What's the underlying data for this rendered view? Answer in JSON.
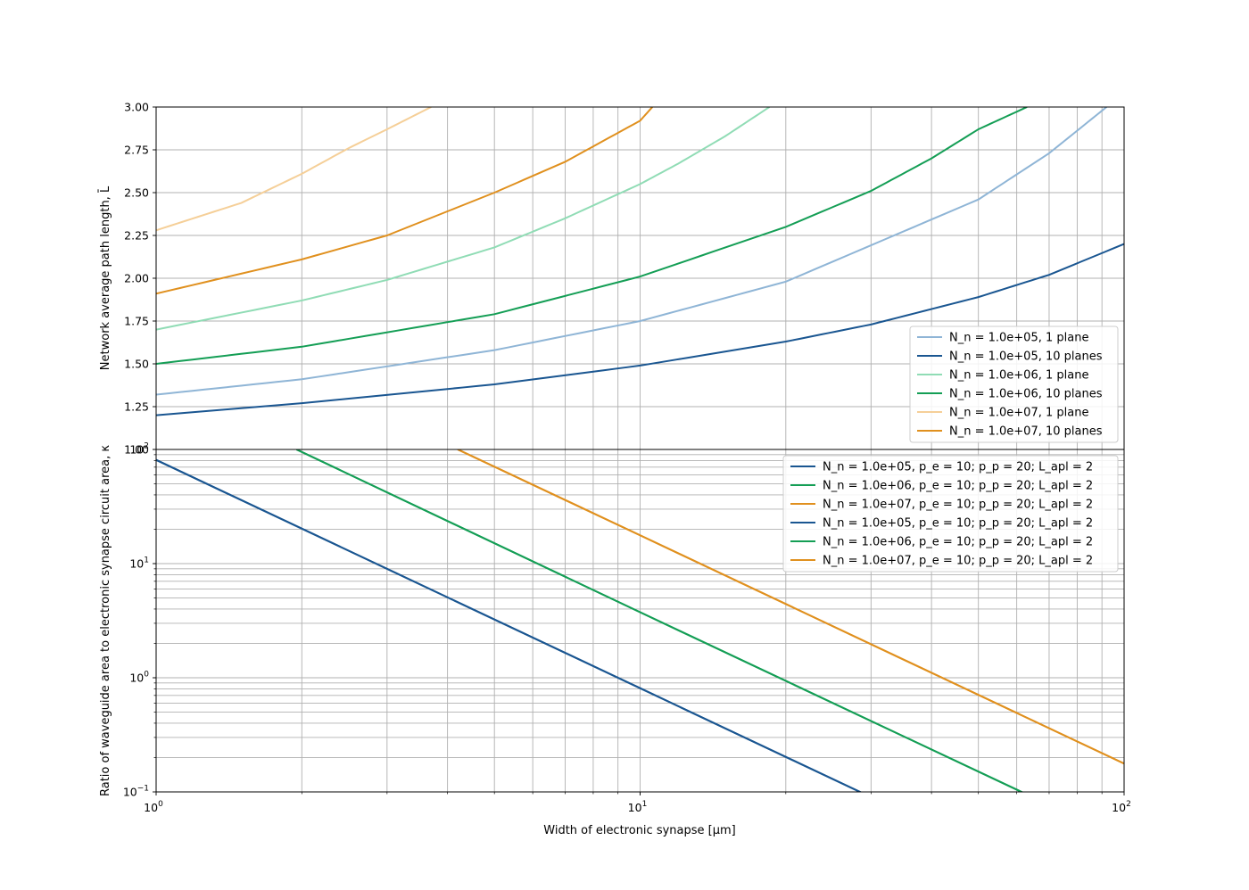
{
  "chart_data": [
    {
      "type": "line",
      "xlabel": "",
      "ylabel": "Network average path length, L̄",
      "xscale": "log",
      "xlim": [
        1,
        100
      ],
      "ylim": [
        1.0,
        3.0
      ],
      "yticks": [
        "3.00",
        "2.75",
        "2.50",
        "2.25",
        "2.00",
        "1.75",
        "1.50",
        "1.25",
        "1.00"
      ],
      "grid": true,
      "legend_position": "lower-right",
      "series": [
        {
          "name": "N_n = 1.0e+05, 1 plane",
          "color": "#8fb5d6",
          "x": [
            1,
            2,
            5,
            10,
            20,
            50,
            70,
            92
          ],
          "y": [
            1.32,
            1.41,
            1.58,
            1.75,
            1.98,
            2.46,
            2.73,
            3.0
          ]
        },
        {
          "name": "N_n = 1.0e+05, 10 planes",
          "color": "#1a5691",
          "x": [
            1,
            2,
            5,
            10,
            20,
            30,
            50,
            70,
            100
          ],
          "y": [
            1.2,
            1.27,
            1.38,
            1.49,
            1.63,
            1.73,
            1.89,
            2.02,
            2.2
          ]
        },
        {
          "name": "N_n = 1.0e+06, 1 plane",
          "color": "#90dcb5",
          "x": [
            1,
            2,
            3,
            5,
            7,
            10,
            12,
            15,
            18.5
          ],
          "y": [
            1.7,
            1.87,
            1.99,
            2.18,
            2.35,
            2.55,
            2.67,
            2.83,
            3.0
          ]
        },
        {
          "name": "N_n = 1.0e+06, 10 planes",
          "color": "#149e55",
          "x": [
            1,
            2,
            5,
            10,
            20,
            30,
            40,
            50,
            63
          ],
          "y": [
            1.5,
            1.6,
            1.79,
            2.01,
            2.3,
            2.51,
            2.7,
            2.87,
            3.0
          ]
        },
        {
          "name": "N_n = 1.0e+07, 1 plane",
          "color": "#f5cf98",
          "x": [
            1,
            1.5,
            2,
            2.5,
            3,
            3.7
          ],
          "y": [
            2.28,
            2.44,
            2.61,
            2.76,
            2.87,
            3.0
          ]
        },
        {
          "name": "N_n = 1.0e+07, 10 planes",
          "color": "#e0901e",
          "x": [
            1,
            2,
            3,
            5,
            7,
            10,
            10.6
          ],
          "y": [
            1.91,
            2.11,
            2.25,
            2.5,
            2.68,
            2.92,
            3.0
          ]
        }
      ]
    },
    {
      "type": "line",
      "xlabel": "Width of electronic synapse [μm]",
      "ylabel": "Ratio of waveguide area to electronic synapse circuit area, κ",
      "xscale": "log",
      "yscale": "log",
      "xlim": [
        1,
        100
      ],
      "ylim": [
        0.1,
        100
      ],
      "xticks": [
        {
          "base": "10",
          "exp": "0"
        },
        {
          "base": "10",
          "exp": "1"
        },
        {
          "base": "10",
          "exp": "2"
        }
      ],
      "yticks": [
        {
          "base": "10",
          "exp": "2"
        },
        {
          "base": "10",
          "exp": "1"
        },
        {
          "base": "10",
          "exp": "0"
        },
        {
          "base": "10",
          "exp": "−1"
        }
      ],
      "grid": true,
      "legend_position": "upper-right",
      "series": [
        {
          "name": "N_n = 1.0e+05, p_e = 10; p_p = 20; L_apl = 2",
          "color": "#1a5691",
          "x": [
            1,
            10,
            28.9
          ],
          "y": [
            81,
            0.81,
            0.097
          ]
        },
        {
          "name": "N_n = 1.0e+06, p_e = 10; p_p = 20; L_apl = 2",
          "color": "#149e55",
          "x": [
            1.95,
            10,
            62
          ],
          "y": [
            100,
            3.75,
            0.098
          ]
        },
        {
          "name": "N_n = 1.0e+07, p_e = 10; p_p = 20; L_apl = 2",
          "color": "#e0901e",
          "x": [
            4.2,
            10,
            100
          ],
          "y": [
            100,
            17.7,
            0.177
          ]
        },
        {
          "name": "N_n = 1.0e+05, p_e = 10; p_p = 20; L_apl = 2",
          "color": "#1a5691",
          "x": [
            1,
            10,
            28.9
          ],
          "y": [
            81,
            0.81,
            0.097
          ]
        },
        {
          "name": "N_n = 1.0e+06, p_e = 10; p_p = 20; L_apl = 2",
          "color": "#149e55",
          "x": [
            1.95,
            10,
            62
          ],
          "y": [
            100,
            3.75,
            0.098
          ]
        },
        {
          "name": "N_n = 1.0e+07, p_e = 10; p_p = 20; L_apl = 2",
          "color": "#e0901e",
          "x": [
            4.2,
            10,
            100
          ],
          "y": [
            100,
            17.7,
            0.177
          ]
        }
      ]
    }
  ]
}
